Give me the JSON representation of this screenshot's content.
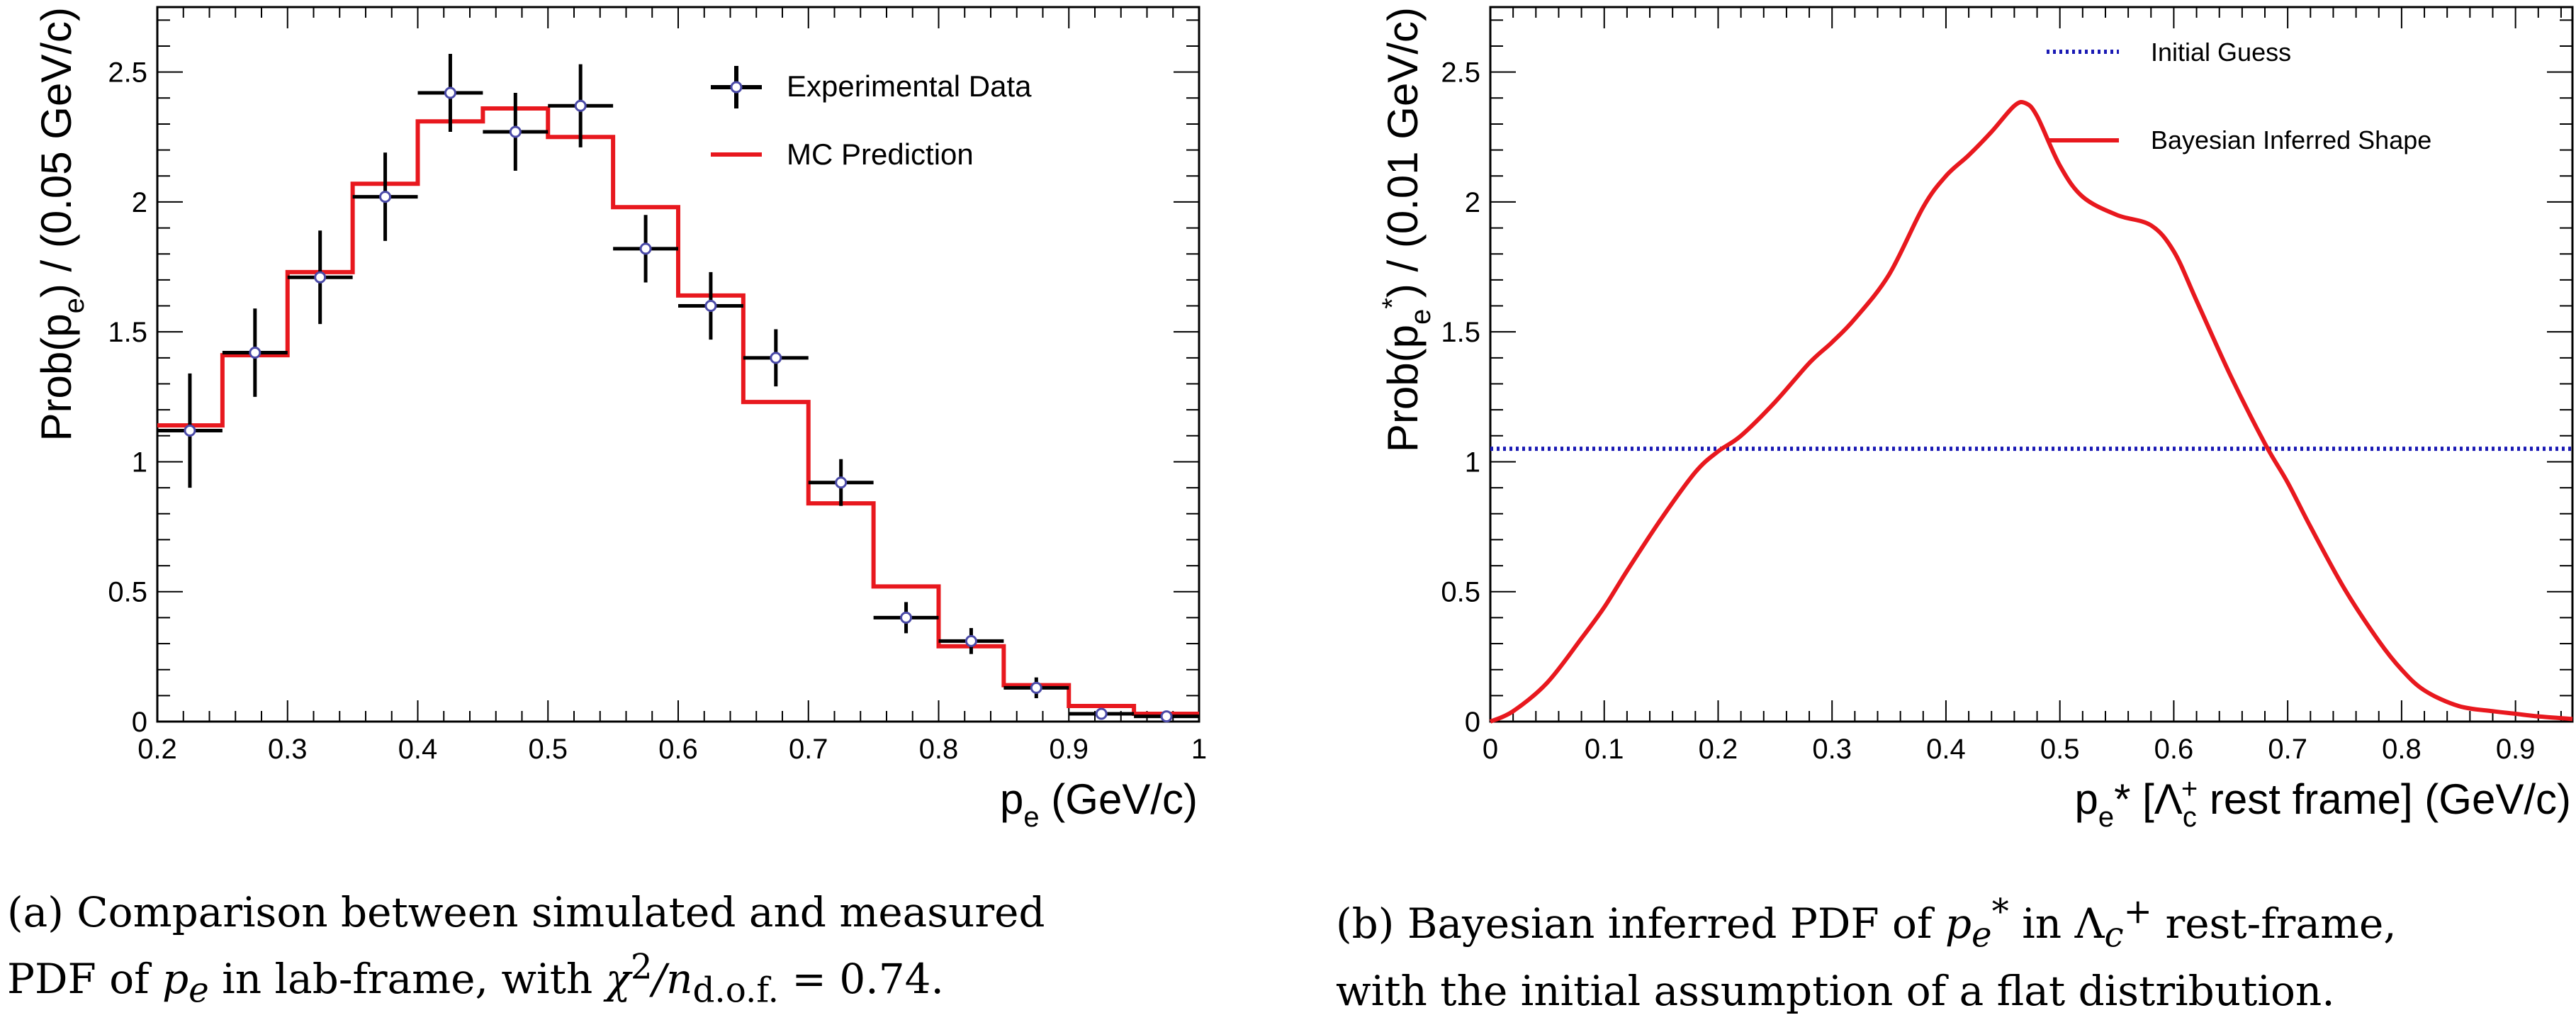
{
  "chart_data": [
    {
      "type": "line",
      "ylabel_base": "Prob(p",
      "ylabel_sub": "e",
      "ylabel_rest": ") / (0.05 GeV/c)",
      "xlabel_base": "p",
      "xlabel_sub": "e",
      "xlabel_rest": " (GeV/c)",
      "xlim": [
        0.2,
        1.0
      ],
      "ylim": [
        0,
        2.75
      ],
      "xticks": [
        "0.2",
        "0.3",
        "0.4",
        "0.5",
        "0.6",
        "0.7",
        "0.8",
        "0.9",
        "1"
      ],
      "yticks": [
        "0",
        "0.5",
        "1",
        "1.5",
        "2",
        "2.5"
      ],
      "legend_position": "top-right",
      "series": [
        {
          "name": "Experimental Data",
          "kind": "points-with-errors",
          "color": "#000000",
          "marker_color": "#4a4aa8",
          "x": [
            0.225,
            0.275,
            0.325,
            0.375,
            0.425,
            0.475,
            0.525,
            0.575,
            0.625,
            0.675,
            0.725,
            0.775,
            0.825,
            0.875,
            0.925,
            0.975
          ],
          "y": [
            1.12,
            1.42,
            1.71,
            2.02,
            2.42,
            2.27,
            2.37,
            1.82,
            1.6,
            1.4,
            0.92,
            0.4,
            0.31,
            0.13,
            0.03,
            0.02
          ],
          "yerr": [
            0.22,
            0.17,
            0.18,
            0.17,
            0.15,
            0.15,
            0.16,
            0.13,
            0.13,
            0.11,
            0.09,
            0.06,
            0.05,
            0.04,
            0.02,
            0.015
          ]
        },
        {
          "name": "MC Prediction",
          "kind": "histogram-step",
          "color": "#e8181e",
          "bin_edges": [
            0.2,
            0.25,
            0.3,
            0.35,
            0.4,
            0.45,
            0.5,
            0.55,
            0.6,
            0.65,
            0.7,
            0.75,
            0.8,
            0.85,
            0.9,
            0.95,
            1.0
          ],
          "values": [
            1.14,
            1.41,
            1.73,
            2.07,
            2.31,
            2.36,
            2.25,
            1.98,
            1.64,
            1.23,
            0.84,
            0.52,
            0.29,
            0.14,
            0.06,
            0.03
          ]
        }
      ]
    },
    {
      "type": "line",
      "ylabel_base": "Prob(p",
      "ylabel_sub": "e",
      "ylabel_sup": "*",
      "ylabel_rest": ") / (0.01 GeV/c)",
      "xlabel_base": "p",
      "xlabel_sub": "e",
      "xlabel_mid": "* [Λ",
      "xlabel_mid_sub": "c",
      "xlabel_mid_sup": "+",
      "xlabel_rest": " rest frame] (GeV/c)",
      "xlim": [
        0,
        0.95
      ],
      "ylim": [
        0,
        2.75
      ],
      "xticks": [
        "0",
        "0.1",
        "0.2",
        "0.3",
        "0.4",
        "0.5",
        "0.6",
        "0.7",
        "0.8",
        "0.9"
      ],
      "yticks": [
        "0",
        "0.5",
        "1",
        "1.5",
        "2",
        "2.5"
      ],
      "legend_position": "top-right",
      "series": [
        {
          "name": "Initial Guess",
          "kind": "dotted-line",
          "color": "#1a1ab4",
          "x": [
            0,
            0.95
          ],
          "y": [
            1.05,
            1.05
          ]
        },
        {
          "name": "Bayesian Inferred Shape",
          "kind": "curve",
          "color": "#e8181e",
          "x": [
            0,
            0.02,
            0.05,
            0.08,
            0.1,
            0.12,
            0.15,
            0.18,
            0.2,
            0.22,
            0.25,
            0.28,
            0.3,
            0.32,
            0.35,
            0.38,
            0.4,
            0.42,
            0.44,
            0.46,
            0.47,
            0.48,
            0.5,
            0.52,
            0.55,
            0.58,
            0.6,
            0.62,
            0.65,
            0.68,
            0.7,
            0.72,
            0.75,
            0.78,
            0.8,
            0.82,
            0.85,
            0.88,
            0.9,
            0.92,
            0.95
          ],
          "y": [
            0,
            0.04,
            0.15,
            0.32,
            0.44,
            0.58,
            0.78,
            0.96,
            1.04,
            1.1,
            1.23,
            1.38,
            1.46,
            1.55,
            1.72,
            1.98,
            2.1,
            2.18,
            2.27,
            2.37,
            2.38,
            2.33,
            2.14,
            2.02,
            1.95,
            1.91,
            1.81,
            1.62,
            1.33,
            1.07,
            0.92,
            0.75,
            0.51,
            0.31,
            0.2,
            0.12,
            0.06,
            0.04,
            0.03,
            0.02,
            0.01
          ]
        }
      ]
    }
  ],
  "captions": {
    "a": "(a) Comparison between simulated and measured PDF of pₑ in lab-frame, with χ²/n_d.o.f. = 0.74.",
    "a_line1": "(a) Comparison between simulated and measured",
    "a_line2_pre": "PDF of ",
    "a_line2_var": "p",
    "a_line2_sub": "e",
    "a_line2_mid": " in lab-frame, with ",
    "a_line2_chi": "χ",
    "a_line2_chi_sup": "2",
    "a_line2_n": "/n",
    "a_line2_n_sub": "d.o.f.",
    "a_line2_end": " = 0.74.",
    "b_line1_pre": "(b) Bayesian inferred PDF of ",
    "b_line1_var": "p",
    "b_line1_sub": "e",
    "b_line1_sup": "*",
    "b_line1_mid": " in ",
    "b_line1_lambda": "Λ",
    "b_line1_lambda_sub": "c",
    "b_line1_lambda_sup": "+",
    "b_line1_end": " rest-frame,",
    "b_line2": "with the initial assumption of a flat distribution."
  }
}
